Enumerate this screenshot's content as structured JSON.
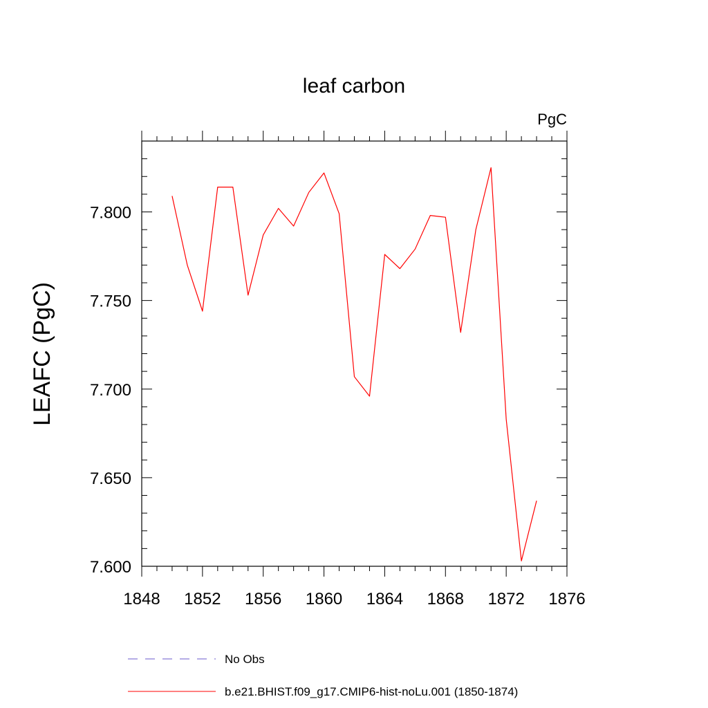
{
  "chart_data": {
    "type": "line",
    "title": "leaf carbon",
    "units": "PgC",
    "xlabel": "",
    "ylabel": "LEAFC  (PgC)",
    "xlim": [
      1848,
      1876
    ],
    "ylim": [
      7.6,
      7.84
    ],
    "x_ticks": [
      1848,
      1852,
      1856,
      1860,
      1864,
      1868,
      1872,
      1876
    ],
    "x_tick_labels": [
      "1848",
      "1852",
      "1856",
      "1860",
      "1864",
      "1868",
      "1872",
      "1876"
    ],
    "y_ticks": [
      7.6,
      7.65,
      7.7,
      7.75,
      7.8
    ],
    "y_tick_labels": [
      "7.600",
      "7.650",
      "7.700",
      "7.750",
      "7.800"
    ],
    "grid": false,
    "legend_position": "bottom",
    "series": [
      {
        "name": "b.e21.BHIST.f09_g17.CMIP6-hist-noLu.001 (1850-1874)",
        "color": "#ff0000",
        "style": "solid",
        "x": [
          1850,
          1851,
          1852,
          1853,
          1854,
          1855,
          1856,
          1857,
          1858,
          1859,
          1860,
          1861,
          1862,
          1863,
          1864,
          1865,
          1866,
          1867,
          1868,
          1869,
          1870,
          1871,
          1872,
          1873,
          1874
        ],
        "values": [
          7.809,
          7.77,
          7.744,
          7.814,
          7.814,
          7.753,
          7.787,
          7.802,
          7.792,
          7.811,
          7.822,
          7.799,
          7.707,
          7.696,
          7.776,
          7.768,
          7.779,
          7.798,
          7.797,
          7.732,
          7.79,
          7.825,
          7.683,
          7.603,
          7.637
        ]
      }
    ],
    "legend": [
      {
        "label": "No Obs",
        "color": "#6a5acd",
        "style": "dashed"
      },
      {
        "label": "b.e21.BHIST.f09_g17.CMIP6-hist-noLu.001 (1850-1874)",
        "color": "#ff0000",
        "style": "solid"
      }
    ]
  }
}
